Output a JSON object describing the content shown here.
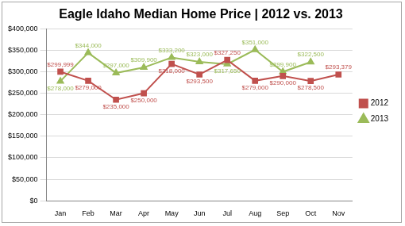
{
  "chart_data": {
    "type": "line",
    "title": "Eagle Idaho Median Home Price | 2012 vs. 2013",
    "categories": [
      "Jan",
      "Feb",
      "Mar",
      "Apr",
      "May",
      "Jun",
      "Jul",
      "Aug",
      "Sep",
      "Oct",
      "Nov"
    ],
    "series": [
      {
        "name": "2012",
        "color": "#c0504d",
        "marker": "square",
        "values": [
          299999,
          279000,
          235000,
          250000,
          318000,
          293500,
          327250,
          279000,
          290000,
          278500,
          293379
        ],
        "value_labels": [
          "$299,999",
          "$279,000",
          "$235,000",
          "$250,000",
          "$318,000",
          "$293,500",
          "$327,250",
          "$279,000",
          "$290,000",
          "$278,500",
          "$293,379"
        ]
      },
      {
        "name": "2013",
        "color": "#9bbb59",
        "marker": "triangle",
        "values": [
          278000,
          344000,
          297000,
          309900,
          333200,
          323000,
          317650,
          351000,
          299900,
          322500,
          null
        ],
        "value_labels": [
          "$278,000",
          "$344,000",
          "$297,000",
          "$309,900",
          "$333,200",
          "$323,000",
          "$317,650",
          "$351,000",
          "$299,900",
          "$322,500",
          null
        ]
      }
    ],
    "ylim": [
      0,
      400000
    ],
    "yticks": [
      {
        "value": 0,
        "label": "$0"
      },
      {
        "value": 50000,
        "label": "$50,000"
      },
      {
        "value": 100000,
        "label": "$100,000"
      },
      {
        "value": 150000,
        "label": "$150,000"
      },
      {
        "value": 200000,
        "label": "$200,000"
      },
      {
        "value": 250000,
        "label": "$250,000"
      },
      {
        "value": 300000,
        "label": "$300,000"
      },
      {
        "value": 350000,
        "label": "$350,000"
      },
      {
        "value": 400000,
        "label": "$400,000"
      }
    ],
    "grid": true,
    "legend": "right",
    "data_labels": true
  }
}
